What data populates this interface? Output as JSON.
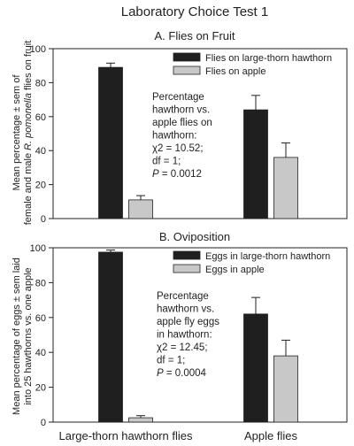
{
  "figure_title": "Laboratory Choice Test 1",
  "x_categories": [
    "Large-thorn hawthorn flies",
    "Apple flies"
  ],
  "colors": {
    "hawthorn": "#1f1f1f",
    "apple": "#c8c8c8",
    "axis": "#222222"
  },
  "chart_data": [
    {
      "type": "bar",
      "title": "A. Flies on Fruit",
      "ylabel_lines": [
        "Mean percentage ± sem of",
        "female and male ",
        "R. pomonella",
        " flies on fruit"
      ],
      "ylim": [
        0,
        100
      ],
      "yticks": [
        0,
        20,
        40,
        60,
        80,
        100
      ],
      "categories": [
        "Large-thorn hawthorn flies",
        "Apple flies"
      ],
      "series": [
        {
          "name": "Flies on large-thorn hawthorn",
          "values": [
            89,
            64
          ],
          "errors": [
            2.5,
            8.5
          ],
          "color": "#1f1f1f"
        },
        {
          "name": "Flies on apple",
          "values": [
            11,
            36
          ],
          "errors": [
            2.5,
            8.5
          ],
          "color": "#c8c8c8"
        }
      ],
      "legend_position": "top-right",
      "annotation": [
        "Percentage",
        "hawthorn vs.",
        "apple flies on",
        "hawthorn:",
        "χ2 = 10.52;",
        "df = 1;",
        "P = 0.0012"
      ]
    },
    {
      "type": "bar",
      "title": "B. Oviposition",
      "ylabel_lines": [
        "Mean percentage of eggs ± sem laid",
        "into 25 hawthorns vs. one apple"
      ],
      "ylim": [
        0,
        100
      ],
      "yticks": [
        0,
        20,
        40,
        60,
        80,
        100
      ],
      "categories": [
        "Large-thorn hawthorn flies",
        "Apple flies"
      ],
      "series": [
        {
          "name": "Eggs in large-thorn hawthorn",
          "values": [
            97.5,
            62
          ],
          "errors": [
            1.2,
            9.5
          ],
          "color": "#1f1f1f"
        },
        {
          "name": "Eggs in apple",
          "values": [
            2.5,
            38
          ],
          "errors": [
            1.2,
            9
          ],
          "color": "#c8c8c8"
        }
      ],
      "legend_position": "top-right",
      "annotation": [
        "Percentage",
        "hawthorn vs.",
        "apple fly eggs",
        "in hawthorn:",
        "χ2 = 12.45;",
        "df = 1;",
        "P = 0.0004"
      ]
    }
  ]
}
